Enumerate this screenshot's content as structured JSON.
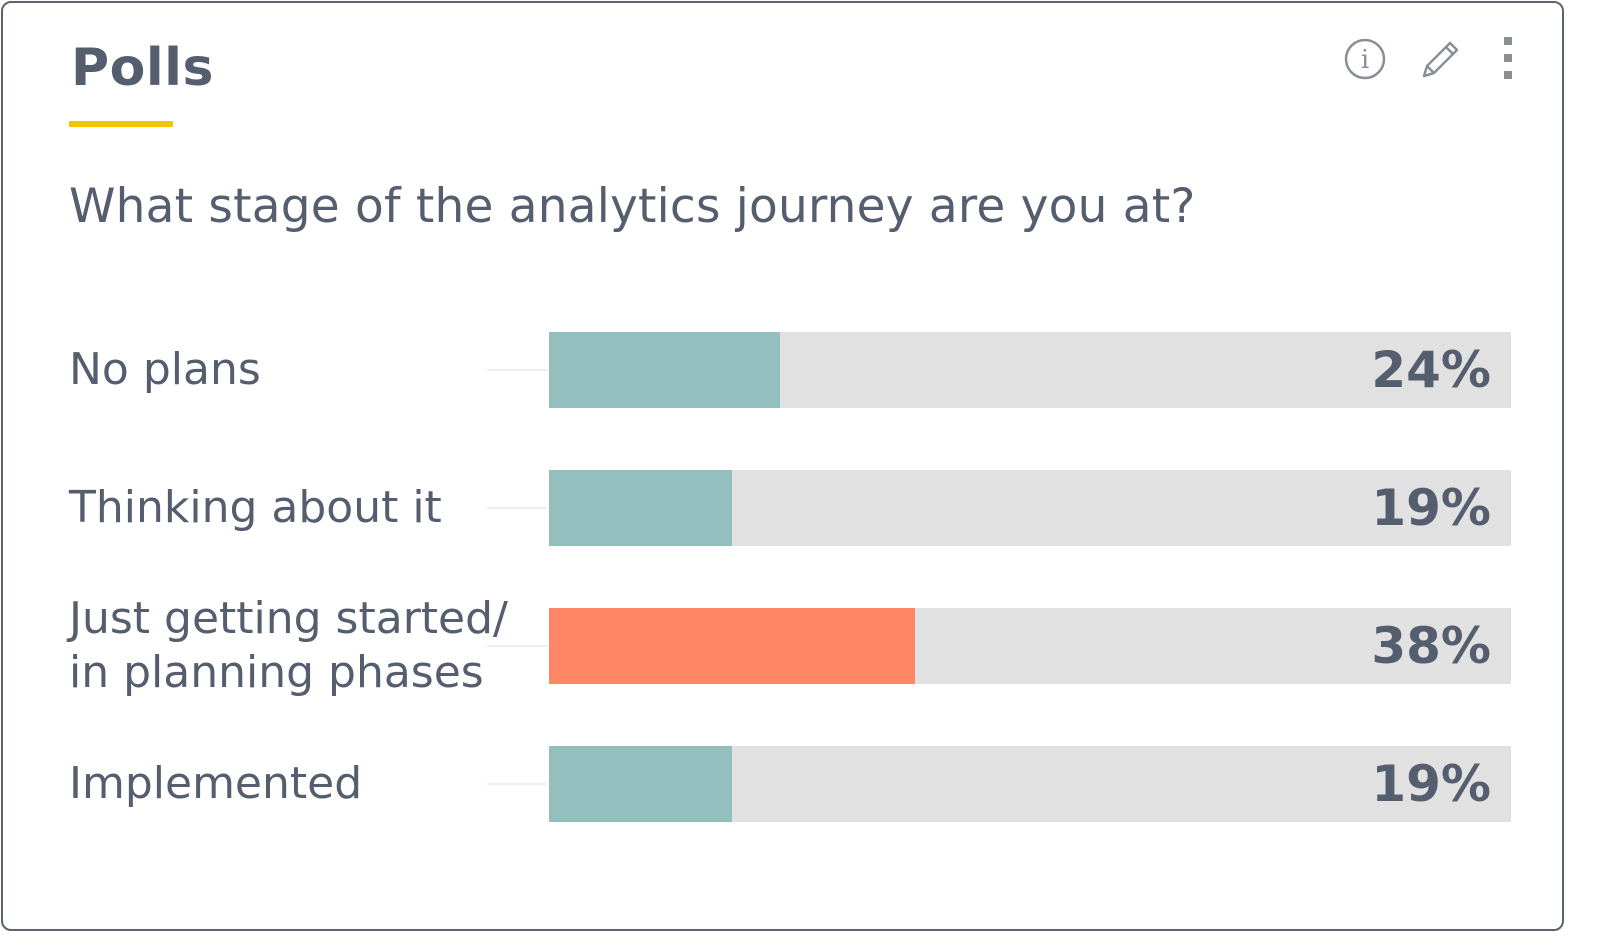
{
  "widget": {
    "title": "Polls",
    "accent_color": "#f5c400",
    "toolbar": {
      "info_icon": "info-icon",
      "edit_icon": "pencil-icon",
      "menu_icon": "kebab-menu-icon"
    }
  },
  "poll": {
    "question": "What stage of the analytics journey are you at?"
  },
  "chart_data": {
    "type": "bar",
    "orientation": "horizontal",
    "xlim": [
      0,
      100
    ],
    "categories": [
      "No plans",
      "Thinking about it",
      "Just getting started/\nin planning phases",
      "Implemented"
    ],
    "values": [
      24,
      19,
      38,
      19
    ],
    "value_labels": [
      "24%",
      "19%",
      "38%",
      "19%"
    ],
    "colors": [
      "#94bfbf",
      "#94bfbf",
      "#ff8766",
      "#94bfbf"
    ],
    "track_color": "#e1e1e1",
    "highlighted_index": 2
  }
}
